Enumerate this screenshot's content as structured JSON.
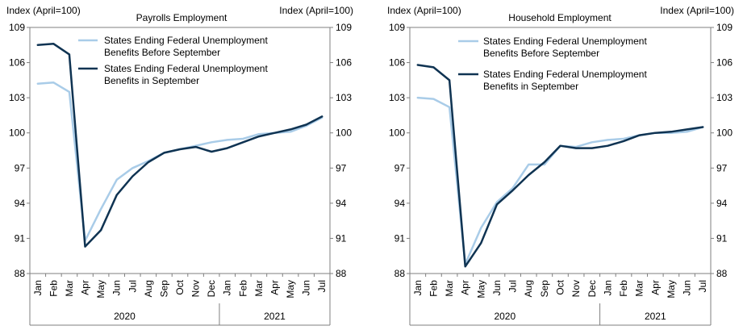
{
  "colors": {
    "before": "#a9cce8",
    "during": "#0f3352",
    "frame": "#7f7f7f"
  },
  "chart_data": [
    {
      "type": "line",
      "title": "Payrolls Employment",
      "left_axis_label": "Index (April=100)",
      "right_axis_label": "Index (April=100)",
      "ylim": [
        88,
        109
      ],
      "yticks": [
        88,
        91,
        94,
        97,
        100,
        103,
        106,
        109
      ],
      "categories": [
        "Jan",
        "Feb",
        "Mar",
        "Apr",
        "May",
        "Jun",
        "Jul",
        "Aug",
        "Sep",
        "Oct",
        "Nov",
        "Dec",
        "Jan",
        "Feb",
        "Mar",
        "Apr",
        "May",
        "Jun",
        "Jul"
      ],
      "years": [
        {
          "label": "2020",
          "start": 0,
          "end": 11
        },
        {
          "label": "2021",
          "start": 12,
          "end": 18
        }
      ],
      "legend_position": "top-right",
      "grid": false,
      "series": [
        {
          "name": "States Ending Federal Unemployment Benefits Before September",
          "values": [
            104.2,
            104.3,
            103.5,
            90.8,
            93.5,
            96.0,
            97.0,
            97.6,
            98.3,
            98.6,
            98.9,
            99.2,
            99.4,
            99.5,
            99.9,
            100.0,
            100.1,
            100.6,
            101.3
          ]
        },
        {
          "name": "States Ending Federal Unemployment Benefits in September",
          "values": [
            107.5,
            107.6,
            106.7,
            90.3,
            91.7,
            94.7,
            96.3,
            97.5,
            98.3,
            98.6,
            98.8,
            98.4,
            98.7,
            99.2,
            99.7,
            100.0,
            100.3,
            100.7,
            101.4
          ]
        }
      ]
    },
    {
      "type": "line",
      "title": "Household Employment",
      "left_axis_label": "Index (April=100)",
      "right_axis_label": "Index (April=100)",
      "ylim": [
        88,
        109
      ],
      "yticks": [
        88,
        91,
        94,
        97,
        100,
        103,
        106,
        109
      ],
      "categories": [
        "Jan",
        "Feb",
        "Mar",
        "Apr",
        "May",
        "Jun",
        "Jul",
        "Aug",
        "Sep",
        "Oct",
        "Nov",
        "Dec",
        "Jan",
        "Feb",
        "Mar",
        "Apr",
        "May",
        "Jun",
        "Jul"
      ],
      "years": [
        {
          "label": "2020",
          "start": 0,
          "end": 11
        },
        {
          "label": "2021",
          "start": 12,
          "end": 18
        }
      ],
      "legend_position": "top-right",
      "grid": false,
      "series": [
        {
          "name": "States Ending Federal Unemployment Benefits Before September",
          "values": [
            103.0,
            102.9,
            102.2,
            88.8,
            91.9,
            94.1,
            95.3,
            97.3,
            97.3,
            98.9,
            98.8,
            99.2,
            99.4,
            99.5,
            99.8,
            100.0,
            100.0,
            100.1,
            100.5
          ]
        },
        {
          "name": "States Ending Federal Unemployment Benefits in September",
          "values": [
            105.8,
            105.6,
            104.5,
            88.6,
            90.6,
            93.9,
            95.1,
            96.4,
            97.5,
            98.9,
            98.7,
            98.7,
            98.9,
            99.3,
            99.8,
            100.0,
            100.1,
            100.3,
            100.5
          ]
        }
      ]
    }
  ]
}
